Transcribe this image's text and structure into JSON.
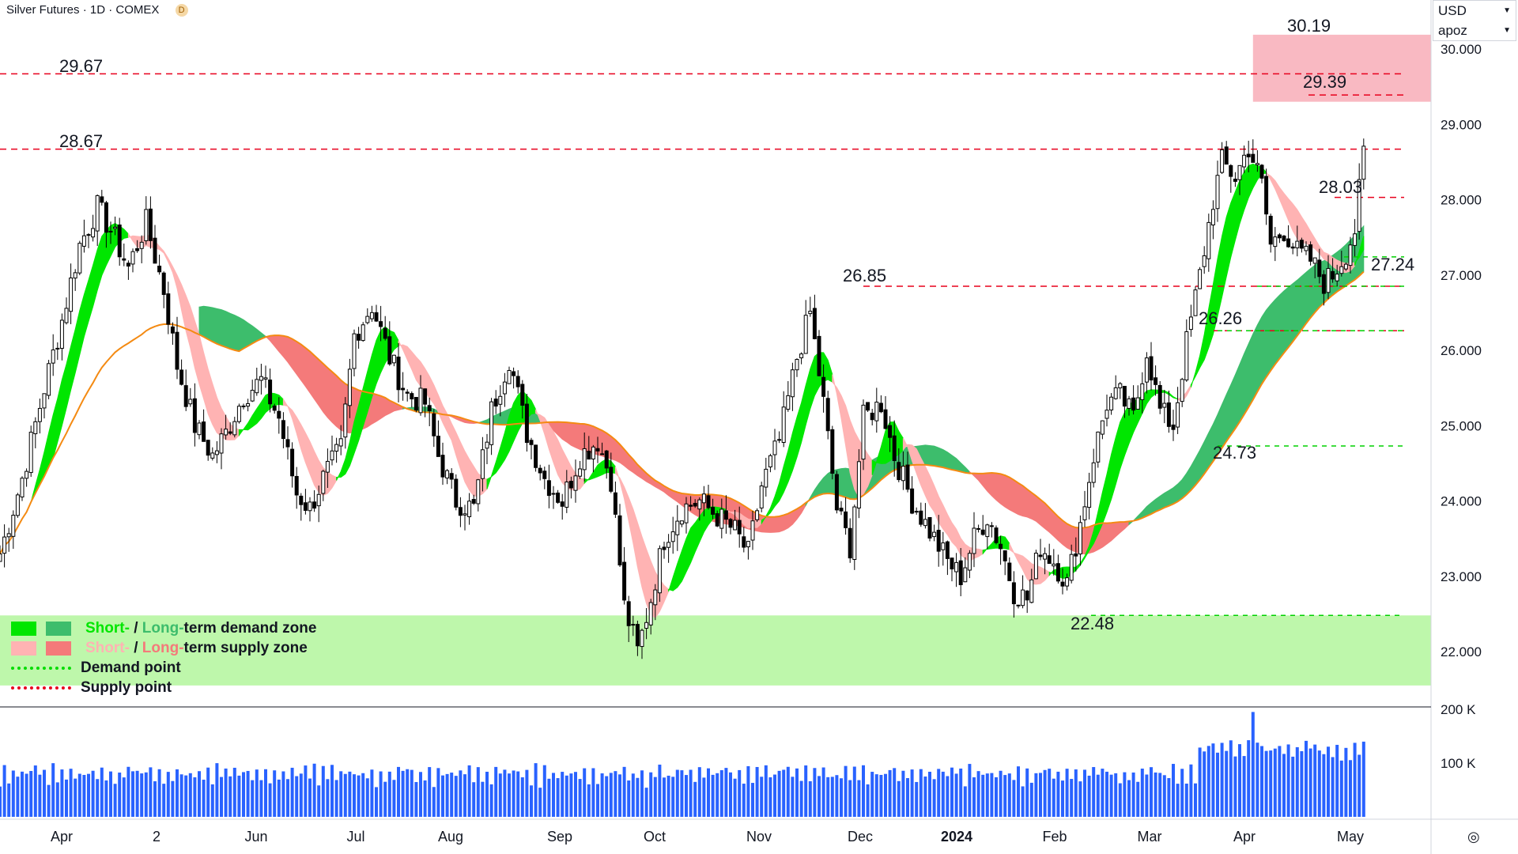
{
  "header": {
    "symbol": "Silver Futures",
    "interval": "1D",
    "exchange": "COMEX",
    "badge": "D"
  },
  "currency_box": {
    "currency": "USD",
    "indicator": "apoz"
  },
  "legend": {
    "rows": [
      {
        "short_text": "Short-",
        "sep": " / ",
        "long_text": "Long-",
        "rest": "term demand zone",
        "short_color": "#00e600",
        "long_color": "#3dbd6c"
      },
      {
        "short_text": "Short-",
        "sep": " / ",
        "long_text": "Long-",
        "rest": "term supply zone",
        "short_color": "#ffb3b3",
        "long_color": "#f47a7a"
      },
      {
        "label": "Demand point",
        "color": "#00dd00"
      },
      {
        "label": "Supply point",
        "color": "#e8001c"
      }
    ]
  },
  "colors": {
    "up_candle": "#ffffff",
    "down_candle": "#000000",
    "candle_outline": "#000000",
    "volume_bar": "#2962ff",
    "demand_short": "#00e600",
    "demand_long": "#3dbd6c",
    "supply_short": "#ffb3b3",
    "supply_long": "#f47a7a",
    "transition": "#f48a12",
    "demand_band": "#bef7ab",
    "supply_box": "#f9b9c2",
    "demand_line": "#00d000",
    "supply_line": "#e8001c"
  },
  "chart_data": {
    "type": "candlestick",
    "title": "Silver Futures · 1D · COMEX",
    "ylim": [
      21.55,
      30.65
    ],
    "y_ticks": [
      "22.000",
      "23.000",
      "24.000",
      "25.000",
      "26.000",
      "27.000",
      "28.000",
      "29.000",
      "30.000"
    ],
    "x_ticks": [
      "Apr",
      "2",
      "Jun",
      "Jul",
      "Aug",
      "Sep",
      "Oct",
      "Nov",
      "Dec",
      "2024",
      "Feb",
      "Mar",
      "Apr",
      "May"
    ],
    "volume_ticks": [
      "200 K",
      "100 K"
    ],
    "volume_ylim": [
      0,
      200000
    ],
    "price_path_anchors": [
      [
        0,
        23.3
      ],
      [
        5,
        24.3
      ],
      [
        10,
        25.5
      ],
      [
        14,
        26.4
      ],
      [
        18,
        27.4
      ],
      [
        22,
        27.9
      ],
      [
        25,
        27.6
      ],
      [
        29,
        27.1
      ],
      [
        33,
        27.7
      ],
      [
        37,
        26.8
      ],
      [
        40,
        25.8
      ],
      [
        44,
        25.0
      ],
      [
        48,
        24.6
      ],
      [
        51,
        24.9
      ],
      [
        55,
        25.4
      ],
      [
        59,
        25.6
      ],
      [
        63,
        25.1
      ],
      [
        67,
        24.1
      ],
      [
        70,
        23.9
      ],
      [
        73,
        24.3
      ],
      [
        77,
        24.7
      ],
      [
        80,
        26.2
      ],
      [
        84,
        26.6
      ],
      [
        88,
        25.9
      ],
      [
        92,
        25.4
      ],
      [
        96,
        25.3
      ],
      [
        99,
        24.6
      ],
      [
        103,
        24.0
      ],
      [
        107,
        23.9
      ],
      [
        111,
        25.2
      ],
      [
        115,
        25.9
      ],
      [
        119,
        24.9
      ],
      [
        123,
        24.3
      ],
      [
        127,
        24.0
      ],
      [
        131,
        24.6
      ],
      [
        135,
        24.8
      ],
      [
        138,
        24.3
      ],
      [
        141,
        22.6
      ],
      [
        144,
        22.0
      ],
      [
        147,
        22.7
      ],
      [
        150,
        23.5
      ],
      [
        154,
        23.9
      ],
      [
        158,
        24.0
      ],
      [
        162,
        23.8
      ],
      [
        166,
        23.6
      ],
      [
        169,
        23.3
      ],
      [
        172,
        24.2
      ],
      [
        176,
        24.8
      ],
      [
        180,
        25.9
      ],
      [
        183,
        26.5
      ],
      [
        186,
        25.3
      ],
      [
        189,
        23.9
      ],
      [
        192,
        23.4
      ],
      [
        195,
        25.1
      ],
      [
        199,
        25.3
      ],
      [
        202,
        24.6
      ],
      [
        206,
        24.0
      ],
      [
        210,
        23.6
      ],
      [
        214,
        23.2
      ],
      [
        217,
        23.0
      ],
      [
        220,
        23.5
      ],
      [
        223,
        23.8
      ],
      [
        226,
        23.4
      ],
      [
        229,
        22.8
      ],
      [
        232,
        22.7
      ],
      [
        235,
        23.4
      ],
      [
        238,
        23.2
      ],
      [
        241,
        22.9
      ],
      [
        244,
        23.7
      ],
      [
        247,
        24.6
      ],
      [
        250,
        25.3
      ],
      [
        253,
        25.4
      ],
      [
        256,
        25.1
      ],
      [
        259,
        26.0
      ],
      [
        262,
        25.2
      ],
      [
        265,
        25.0
      ],
      [
        268,
        26.1
      ],
      [
        271,
        27.0
      ],
      [
        274,
        28.0
      ],
      [
        276,
        28.5
      ],
      [
        279,
        28.3
      ],
      [
        282,
        28.7
      ],
      [
        285,
        28.2
      ],
      [
        287,
        27.4
      ],
      [
        290,
        27.6
      ],
      [
        293,
        27.3
      ],
      [
        296,
        27.2
      ],
      [
        299,
        26.9
      ],
      [
        301,
        27.0
      ],
      [
        304,
        27.3
      ],
      [
        306,
        27.6
      ],
      [
        308,
        28.6
      ]
    ],
    "annotations": [
      {
        "label": "30.19",
        "price": 30.19
      },
      {
        "label": "29.67",
        "price": 29.67
      },
      {
        "label": "29.39",
        "price": 29.39
      },
      {
        "label": "28.67",
        "price": 28.67
      },
      {
        "label": "28.03",
        "price": 28.03
      },
      {
        "label": "27.24",
        "price": 27.24
      },
      {
        "label": "26.85",
        "price": 26.85
      },
      {
        "label": "26.26",
        "price": 26.26
      },
      {
        "label": "24.73",
        "price": 24.73
      },
      {
        "label": "22.48",
        "price": 22.48
      }
    ],
    "supply_levels": [
      29.67,
      29.39,
      28.67,
      28.03,
      26.85,
      26.26
    ],
    "demand_levels": [
      27.24,
      26.85,
      26.26,
      24.73,
      22.48
    ],
    "supply_zone": [
      29.3,
      30.19
    ],
    "demand_zone": [
      21.55,
      22.48
    ],
    "volume_max_visible": 195000
  }
}
